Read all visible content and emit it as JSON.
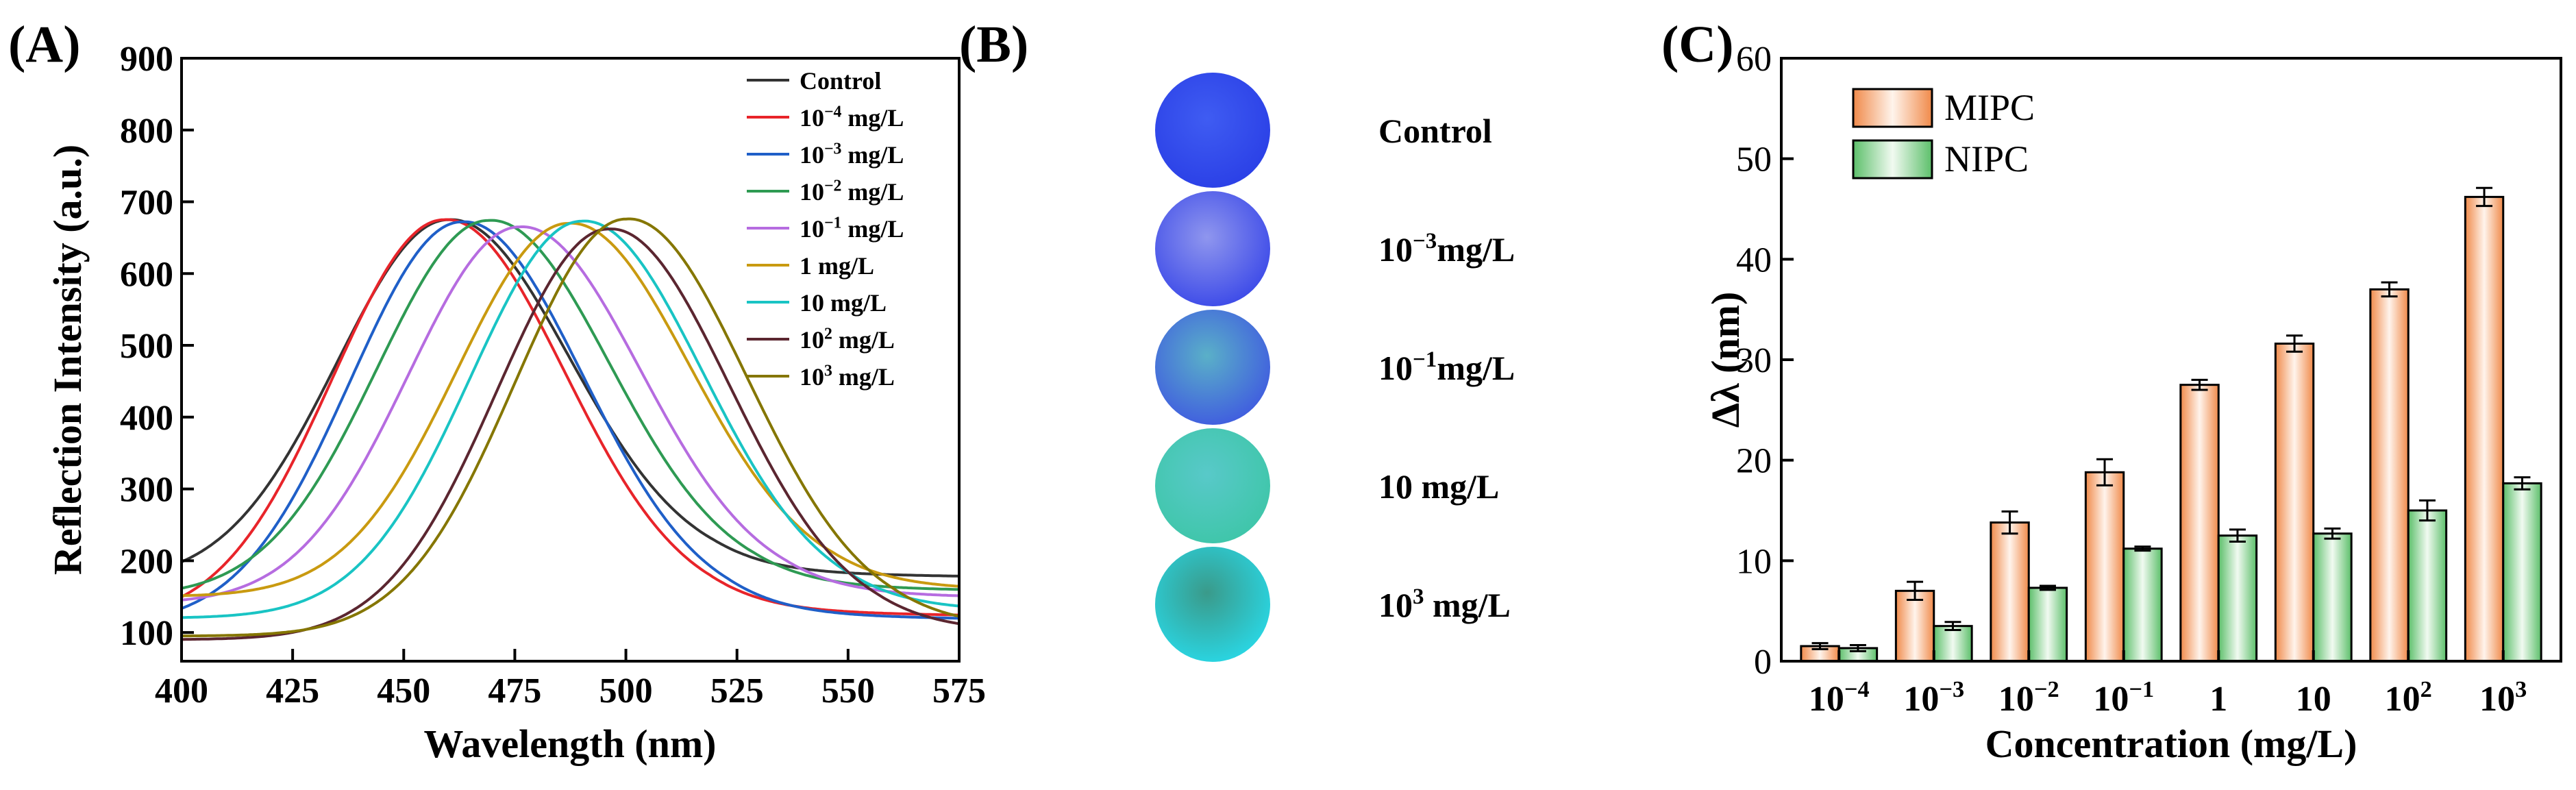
{
  "panels": {
    "a_label": "(A)",
    "b_label": "(B)",
    "c_label": "(C)"
  },
  "chart_data": [
    {
      "type": "line",
      "xlabel": "Wavelength (nm)",
      "ylabel": "Reflection Intensity (a.u.)",
      "xlim": [
        400,
        575
      ],
      "ylim": [
        60,
        900
      ],
      "xticks": [
        400,
        425,
        450,
        475,
        500,
        525,
        550,
        575
      ],
      "yticks": [
        100,
        200,
        300,
        400,
        500,
        600,
        700,
        800,
        900
      ],
      "legend_position": "top-right",
      "grid": false,
      "series": [
        {
          "name": "Control",
          "name_base": "Control",
          "name_sup": "",
          "name_unit": "",
          "color": "#333333",
          "peak": 460,
          "amp": 675,
          "base": 170
        },
        {
          "name": "10^-4 mg/L",
          "name_base": "10",
          "name_sup": "−4",
          "name_unit": " mg/L",
          "color": "#e8242a",
          "peak": 459,
          "amp": 675,
          "base": 115
        },
        {
          "name": "10^-3 mg/L",
          "name_base": "10",
          "name_sup": "−3",
          "name_unit": " mg/L",
          "color": "#1f5fc8",
          "peak": 463,
          "amp": 672,
          "base": 110
        },
        {
          "name": "10^-2 mg/L",
          "name_base": "10",
          "name_sup": "−2",
          "name_unit": " mg/L",
          "color": "#2e9a53",
          "peak": 469,
          "amp": 674,
          "base": 150
        },
        {
          "name": "10^-1 mg/L",
          "name_base": "10",
          "name_sup": "−1",
          "name_unit": " mg/L",
          "color": "#b66ce0",
          "peak": 476,
          "amp": 665,
          "base": 140
        },
        {
          "name": "1 mg/L",
          "name_base": "1",
          "name_sup": "",
          "name_unit": "    mg/L",
          "color": "#c99a10",
          "peak": 487,
          "amp": 670,
          "base": 150
        },
        {
          "name": "10 mg/L",
          "name_base": "10",
          "name_sup": "",
          "name_unit": "   mg/L",
          "color": "#19c4c4",
          "peak": 490,
          "amp": 673,
          "base": 120
        },
        {
          "name": "10^2 mg/L",
          "name_base": "10",
          "name_sup": "2",
          "name_unit": "  mg/L",
          "color": "#5b2630",
          "peak": 496,
          "amp": 662,
          "base": 90
        },
        {
          "name": "10^3 mg/L",
          "name_base": "10",
          "name_sup": "3",
          "name_unit": "  mg/L",
          "color": "#857600",
          "peak": 500,
          "amp": 676,
          "base": 95
        }
      ]
    },
    {
      "type": "image-strip",
      "items": [
        {
          "label_base": "Control",
          "label_sup": "",
          "label_unit": "",
          "c1": "#2a3fe6",
          "c2": "#3f5cf2"
        },
        {
          "label_base": "10",
          "label_sup": "−3",
          "label_unit": "mg/L",
          "c1": "#3a48e8",
          "c2": "#8f96ee"
        },
        {
          "label_base": "10",
          "label_sup": "−1",
          "label_unit": "mg/L",
          "c1": "#3f5ae0",
          "c2": "#5ab0c8"
        },
        {
          "label_base": "10",
          "label_sup": "",
          "label_unit": "   mg/L",
          "c1": "#3ec6a8",
          "c2": "#58c9c9"
        },
        {
          "label_base": "10",
          "label_sup": "3",
          "label_unit": " mg/L",
          "c1": "#29d8e6",
          "c2": "#3a9a8a"
        }
      ]
    },
    {
      "type": "bar",
      "xlabel": "Concentration (mg/L)",
      "ylabel": "Δλ (nm)",
      "ylim": [
        0,
        60
      ],
      "yticks": [
        0,
        10,
        20,
        30,
        40,
        50,
        60
      ],
      "legend_position": "top-left",
      "grid": false,
      "categories": [
        {
          "base": "10",
          "sup": "−4"
        },
        {
          "base": "10",
          "sup": "−3"
        },
        {
          "base": "10",
          "sup": "−2"
        },
        {
          "base": "10",
          "sup": "−1"
        },
        {
          "base": "1",
          "sup": ""
        },
        {
          "base": "10",
          "sup": ""
        },
        {
          "base": "10",
          "sup": "2"
        },
        {
          "base": "10",
          "sup": "3"
        }
      ],
      "series": [
        {
          "name": "MIPC",
          "color": "#f4a46a",
          "values": [
            1.5,
            7.0,
            13.8,
            18.8,
            27.5,
            31.6,
            37.0,
            46.2
          ],
          "errors": [
            0.3,
            0.9,
            1.1,
            1.3,
            0.5,
            0.8,
            0.7,
            0.9
          ]
        },
        {
          "name": "NIPC",
          "color": "#8fd08f",
          "values": [
            1.3,
            3.5,
            7.3,
            11.2,
            12.5,
            12.7,
            15.0,
            17.7
          ],
          "errors": [
            0.3,
            0.4,
            0.2,
            0.2,
            0.6,
            0.5,
            1.0,
            0.6
          ]
        }
      ]
    }
  ]
}
